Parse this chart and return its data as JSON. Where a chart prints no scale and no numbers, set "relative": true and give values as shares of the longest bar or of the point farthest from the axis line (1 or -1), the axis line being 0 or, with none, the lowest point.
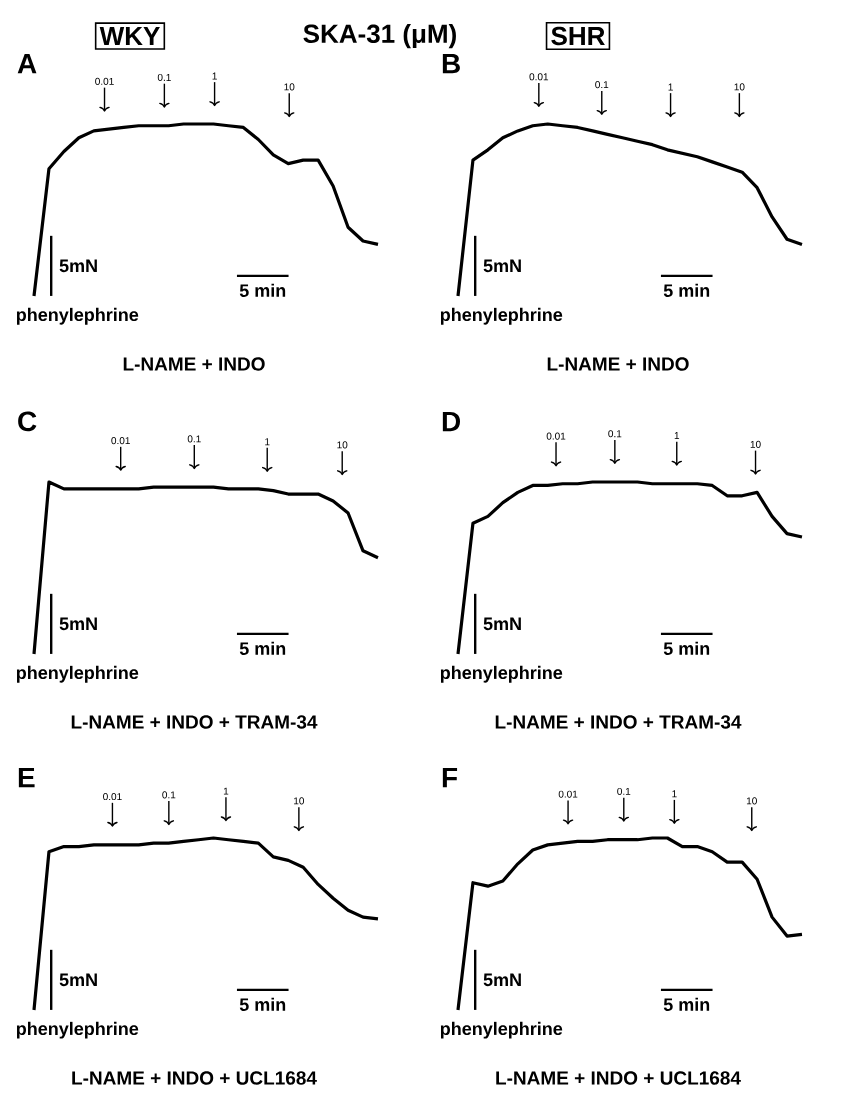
{
  "chart_data": [
    {
      "type": "line",
      "relative": true,
      "title": "A",
      "subtitle": "WKY",
      "xlabel": "L-NAME + INDO",
      "color": "#000000",
      "categories": [
        null,
        null,
        null,
        null,
        null,
        null,
        null,
        null,
        null,
        null,
        null,
        null,
        null,
        null,
        null,
        null,
        null,
        null,
        null,
        null,
        null,
        null,
        null,
        null
      ],
      "values": [
        0,
        0.74,
        0.84,
        0.92,
        0.96,
        0.97,
        0.98,
        0.99,
        0.99,
        0.99,
        1,
        1,
        1,
        0.99,
        0.98,
        0.91,
        0.82,
        0.77,
        0.79,
        0.79,
        0.64,
        0.4,
        0.32,
        0.3
      ],
      "annotations": [
        "0.01",
        "0.1",
        "1",
        "10",
        "5mN",
        "5 min",
        "phenylephrine",
        "SKA-31 (μM)"
      ]
    },
    {
      "type": "line",
      "relative": true,
      "title": "B",
      "subtitle": "SHR",
      "xlabel": "L-NAME + INDO",
      "color": "#000000",
      "categories": [
        null,
        null,
        null,
        null,
        null,
        null,
        null,
        null,
        null,
        null,
        null,
        null,
        null,
        null,
        null,
        null,
        null,
        null,
        null,
        null,
        null,
        null,
        null,
        null
      ],
      "values": [
        0,
        0.79,
        0.85,
        0.92,
        0.96,
        0.99,
        1,
        0.99,
        0.98,
        0.96,
        0.94,
        0.92,
        0.9,
        0.88,
        0.85,
        0.83,
        0.81,
        0.78,
        0.75,
        0.72,
        0.63,
        0.46,
        0.33,
        0.3
      ],
      "annotations": [
        "0.01",
        "0.1",
        "1",
        "10",
        "5mN",
        "5 min",
        "phenylephrine"
      ]
    },
    {
      "type": "line",
      "relative": true,
      "title": "C",
      "xlabel": "L-NAME + INDO + TRAM-34",
      "color": "#000000",
      "categories": [
        null,
        null,
        null,
        null,
        null,
        null,
        null,
        null,
        null,
        null,
        null,
        null,
        null,
        null,
        null,
        null,
        null,
        null,
        null,
        null,
        null,
        null,
        null,
        null
      ],
      "values": [
        0,
        1,
        0.96,
        0.96,
        0.96,
        0.96,
        0.96,
        0.96,
        0.97,
        0.97,
        0.97,
        0.97,
        0.97,
        0.96,
        0.96,
        0.96,
        0.95,
        0.93,
        0.93,
        0.93,
        0.89,
        0.82,
        0.6,
        0.56
      ],
      "annotations": [
        "0.01",
        "0.1",
        "1",
        "10",
        "5mN",
        "5 min",
        "phenylephrine"
      ]
    },
    {
      "type": "line",
      "relative": true,
      "title": "D",
      "xlabel": "L-NAME + INDO + TRAM-34",
      "color": "#000000",
      "categories": [
        null,
        null,
        null,
        null,
        null,
        null,
        null,
        null,
        null,
        null,
        null,
        null,
        null,
        null,
        null,
        null,
        null,
        null,
        null,
        null,
        null,
        null,
        null,
        null
      ],
      "values": [
        0,
        0.76,
        0.8,
        0.88,
        0.94,
        0.98,
        0.98,
        0.99,
        0.99,
        1,
        1,
        1,
        1,
        0.99,
        0.99,
        0.99,
        0.99,
        0.98,
        0.92,
        0.92,
        0.94,
        0.8,
        0.7,
        0.68
      ],
      "annotations": [
        "0.01",
        "0.1",
        "1",
        "10",
        "5mN",
        "5 min",
        "phenylephrine"
      ]
    },
    {
      "type": "line",
      "relative": true,
      "title": "E",
      "xlabel": "L-NAME + INDO + UCL1684",
      "color": "#000000",
      "categories": [
        null,
        null,
        null,
        null,
        null,
        null,
        null,
        null,
        null,
        null,
        null,
        null,
        null,
        null,
        null,
        null,
        null,
        null,
        null,
        null,
        null,
        null,
        null,
        null
      ],
      "values": [
        0,
        0.92,
        0.95,
        0.95,
        0.96,
        0.96,
        0.96,
        0.96,
        0.97,
        0.97,
        0.98,
        0.99,
        1,
        0.99,
        0.98,
        0.97,
        0.89,
        0.87,
        0.83,
        0.73,
        0.65,
        0.58,
        0.54,
        0.53
      ],
      "annotations": [
        "0.01",
        "0.1",
        "1",
        "10",
        "5mN",
        "5 min",
        "phenylephrine"
      ]
    },
    {
      "type": "line",
      "relative": true,
      "title": "F",
      "xlabel": "L-NAME + INDO + UCL1684",
      "color": "#000000",
      "categories": [
        null,
        null,
        null,
        null,
        null,
        null,
        null,
        null,
        null,
        null,
        null,
        null,
        null,
        null,
        null,
        null,
        null,
        null,
        null,
        null,
        null,
        null,
        null,
        null
      ],
      "values": [
        0,
        0.74,
        0.72,
        0.75,
        0.85,
        0.93,
        0.96,
        0.97,
        0.98,
        0.98,
        0.99,
        0.99,
        0.99,
        1,
        1,
        0.95,
        0.95,
        0.92,
        0.86,
        0.86,
        0.76,
        0.54,
        0.43,
        0.44
      ],
      "annotations": [
        "0.01",
        "0.1",
        "1",
        "10",
        "5mN",
        "5 min",
        "phenylephrine"
      ]
    }
  ]
}
